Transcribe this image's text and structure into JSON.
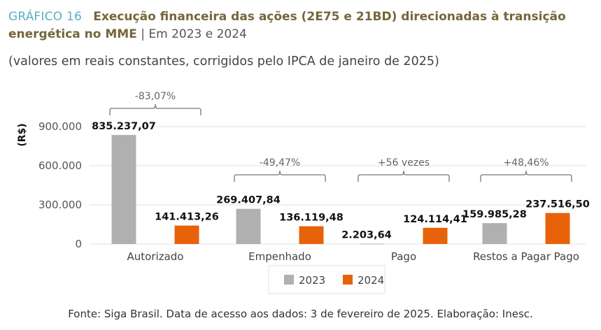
{
  "header": {
    "figure_label": "GRÁFICO 16",
    "title_bold_1": "Execução financeira das ações (2E75 e 21BD) direcionadas à transição",
    "title_bold_2": "energética no MME",
    "title_separator": " | ",
    "title_suffix": "Em 2023 e 2024",
    "subtitle": "(valores em reais constantes, corrigidos pelo IPCA de janeiro de 2025)"
  },
  "footer": {
    "source": "Fonte: Siga Brasil. Data de acesso aos dados: 3 de fevereiro de 2025. Elaboração: Inesc."
  },
  "colors": {
    "2023": "#b0b0b0",
    "2024": "#e8620a",
    "figure_label": "#5bb0c0",
    "title": "#75663a"
  },
  "chart_data": {
    "type": "bar",
    "title": "Execução financeira das ações (2E75 e 21BD) direcionadas à transição energética no MME | Em 2023 e 2024",
    "subtitle": "(valores em reais constantes, corrigidos pelo IPCA de janeiro de 2025)",
    "xlabel": "",
    "ylabel": "(R$)",
    "ylim": [
      0,
      900000
    ],
    "yticks": [
      0,
      300000,
      600000,
      900000
    ],
    "ytick_labels": [
      "0",
      "300.000",
      "600.000",
      "900.000"
    ],
    "grid": true,
    "legend_position": "bottom-center",
    "categories": [
      "Autorizado",
      "Empenhado",
      "Pago",
      "Restos a Pagar Pago"
    ],
    "series": [
      {
        "name": "2023",
        "values": [
          835237.07,
          269407.84,
          2203.64,
          159985.28
        ],
        "labels": [
          "835.237,07",
          "269.407,84",
          "2.203,64",
          "159.985,28"
        ]
      },
      {
        "name": "2024",
        "values": [
          141413.26,
          136119.48,
          124114.41,
          237516.5
        ],
        "labels": [
          "141.413,26",
          "136.119,48",
          "124.114,41",
          "237.516,50"
        ]
      }
    ],
    "annotations": [
      "-83,07%",
      "-49,47%",
      "+56 vezes",
      "+48,46%"
    ]
  }
}
